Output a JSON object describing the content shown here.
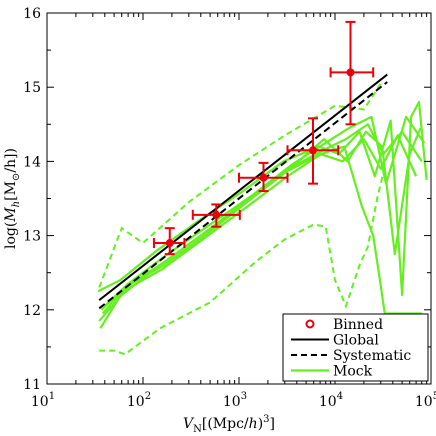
{
  "chart_data": {
    "type": "line",
    "xscale": "log",
    "xlim": [
      10,
      100000
    ],
    "ylim": [
      11,
      16
    ],
    "xlabel": "V_N[(Mpc/h)^3]",
    "ylabel": "log(M_h[M_⊙/h])",
    "x_ticks": [
      {
        "base": "10",
        "exp": "1",
        "value": 10
      },
      {
        "base": "10",
        "exp": "2",
        "value": 100
      },
      {
        "base": "10",
        "exp": "3",
        "value": 1000
      },
      {
        "base": "10",
        "exp": "4",
        "value": 10000
      },
      {
        "base": "10",
        "exp": "5",
        "value": 100000
      }
    ],
    "y_ticks": [
      "11",
      "12",
      "13",
      "14",
      "15",
      "16"
    ],
    "legend_position": "bottom-right",
    "colors": {
      "binned": "#e8000b",
      "global": "#000000",
      "systematic": "#000000",
      "mock": "#66ee22"
    },
    "series": [
      {
        "name": "Binned",
        "type": "errorbar",
        "points": [
          {
            "x": 190,
            "y": 12.9,
            "xerr": [
              130,
              270
            ],
            "yerr": [
              12.75,
              13.1
            ]
          },
          {
            "x": 580,
            "y": 13.28,
            "xerr": [
              330,
              1020
            ],
            "yerr": [
              13.12,
              13.42
            ]
          },
          {
            "x": 1800,
            "y": 13.78,
            "xerr": [
              1000,
              3200
            ],
            "yerr": [
              13.6,
              13.98
            ]
          },
          {
            "x": 5900,
            "y": 14.15,
            "xerr": [
              3200,
              10800
            ],
            "yerr": [
              13.7,
              14.58
            ]
          },
          {
            "x": 14500,
            "y": 15.2,
            "xerr": [
              9000,
              25000
            ],
            "yerr": [
              14.5,
              15.88
            ]
          }
        ]
      },
      {
        "name": "Global",
        "style": "solid",
        "points": [
          [
            35,
            12.13
          ],
          [
            35000,
            15.17
          ]
        ]
      },
      {
        "name": "Systematic",
        "style": "dashed",
        "points": [
          [
            35,
            12.02
          ],
          [
            35000,
            15.07
          ]
        ]
      },
      {
        "name": "Mock",
        "style": "solid",
        "lines": [
          [
            [
              35,
              11.85
            ],
            [
              60,
              12.2
            ],
            [
              150,
              12.6
            ],
            [
              400,
              13.0
            ],
            [
              1200,
              13.45
            ],
            [
              3000,
              13.85
            ],
            [
              7000,
              14.1
            ],
            [
              12000,
              14.0
            ],
            [
              20000,
              14.3
            ],
            [
              30000,
              13.9
            ],
            [
              45000,
              14.35
            ],
            [
              70000,
              13.8
            ]
          ],
          [
            [
              38,
              11.95
            ],
            [
              65,
              12.3
            ],
            [
              170,
              12.65
            ],
            [
              450,
              13.05
            ],
            [
              1300,
              13.5
            ],
            [
              3300,
              13.9
            ],
            [
              7500,
              14.15
            ],
            [
              13000,
              14.3
            ],
            [
              22000,
              14.5
            ],
            [
              32000,
              14.1
            ],
            [
              50000,
              14.4
            ],
            [
              80000,
              14.0
            ]
          ],
          [
            [
              40,
              12.05
            ],
            [
              70,
              12.35
            ],
            [
              180,
              12.75
            ],
            [
              500,
              13.15
            ],
            [
              1400,
              13.55
            ],
            [
              3500,
              13.95
            ],
            [
              8000,
              14.25
            ],
            [
              14000,
              14.45
            ],
            [
              24000,
              14.6
            ],
            [
              34000,
              13.7
            ],
            [
              55000,
              14.6
            ],
            [
              85000,
              14.25
            ]
          ],
          [
            [
              36,
              11.75
            ],
            [
              62,
              12.25
            ],
            [
              160,
              12.55
            ],
            [
              420,
              12.95
            ],
            [
              1250,
              13.4
            ],
            [
              3200,
              13.8
            ],
            [
              7200,
              14.1
            ],
            [
              12500,
              14.2
            ],
            [
              19000,
              13.4
            ],
            [
              25000,
              13.0
            ],
            [
              29000,
              12.45
            ],
            [
              33000,
              11.95
            ],
            [
              45000,
              11.95
            ],
            [
              80000,
              11.95
            ]
          ],
          [
            [
              34,
              12.25
            ],
            [
              58,
              12.4
            ],
            [
              140,
              12.8
            ],
            [
              380,
              13.2
            ],
            [
              1100,
              13.6
            ],
            [
              2900,
              14.0
            ],
            [
              6800,
              14.2
            ],
            [
              11000,
              14.1
            ],
            [
              18000,
              14.4
            ],
            [
              26000,
              13.8
            ],
            [
              38000,
              14.55
            ],
            [
              50000,
              12.2
            ],
            [
              62000,
              14.6
            ],
            [
              75000,
              14.8
            ],
            [
              90000,
              13.75
            ]
          ],
          [
            [
              37,
              12.0
            ],
            [
              64,
              12.3
            ],
            [
              165,
              12.6
            ],
            [
              440,
              13.0
            ],
            [
              1350,
              13.5
            ],
            [
              3400,
              13.9
            ],
            [
              7700,
              14.3
            ],
            [
              13500,
              14.0
            ],
            [
              21000,
              14.4
            ],
            [
              31000,
              14.2
            ],
            [
              42000,
              12.75
            ],
            [
              60000,
              14.1
            ],
            [
              78000,
              14.45
            ]
          ]
        ],
        "band": {
          "upper": [
            [
              35,
              12.3
            ],
            [
              60,
              13.1
            ],
            [
              100,
              12.9
            ],
            [
              300,
              13.45
            ],
            [
              1000,
              13.95
            ],
            [
              3000,
              14.35
            ],
            [
              10000,
              14.75
            ],
            [
              20000,
              14.7
            ],
            [
              30000,
              15.05
            ]
          ],
          "lower": [
            [
              35,
              11.45
            ],
            [
              50,
              11.45
            ],
            [
              65,
              11.4
            ],
            [
              150,
              11.75
            ],
            [
              500,
              12.1
            ],
            [
              1500,
              12.65
            ],
            [
              3000,
              12.95
            ],
            [
              6000,
              13.15
            ],
            [
              8000,
              13.12
            ],
            [
              10000,
              12.4
            ],
            [
              13000,
              12.05
            ],
            [
              18000,
              12.6
            ],
            [
              22000,
              12.85
            ],
            [
              28000,
              13.55
            ],
            [
              32000,
              13.85
            ]
          ]
        }
      }
    ]
  }
}
